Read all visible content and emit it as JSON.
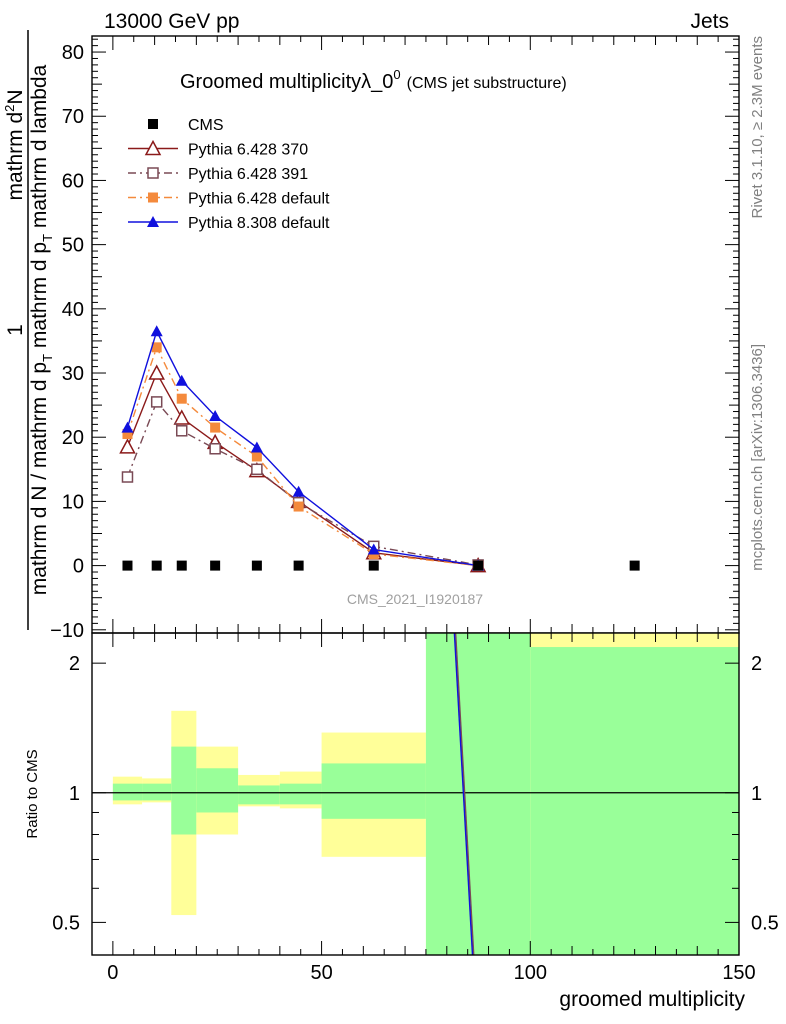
{
  "header": {
    "left": "13000 GeV pp",
    "right": "Jets"
  },
  "side_labels": {
    "rivet": "Rivet 3.1.10, ≥ 2.3M events",
    "mcplots": "mcplots.cern.ch [arXiv:1306.3436]"
  },
  "colors": {
    "cms": "#000000",
    "p370": "#8b1a1a",
    "p391": "#7a4a55",
    "p6def": "#f48a3c",
    "p8def": "#1010dd",
    "band_inner": "#99ff99",
    "band_outer": "#ffff99"
  },
  "chart_data": [
    {
      "type": "line",
      "title": "Groomed multiplicityλ_0",
      "title_sup": "0",
      "subtitle": "(CMS jet substructure)",
      "watermark": "CMS_2021_I1920187",
      "ylabel_numerator": "1",
      "ylabel_numerator2": "mathrm d",
      "ylabel_numerator_sup": "2",
      "ylabel_numerator3": "N",
      "ylabel_denominator": "mathrm d N / mathrm d p",
      "ylabel_denominator_sub": "T",
      "ylabel_denominator2": " mathrm d p",
      "ylabel_denominator2_sub": "T",
      "ylabel_denominator3": " mathrm d lambda",
      "xlabel": "groomed multiplicity",
      "xlim": [
        -5,
        150
      ],
      "ylim": [
        -10.5,
        82.5
      ],
      "yticks": [
        -10,
        0,
        10,
        20,
        30,
        40,
        50,
        60,
        70,
        80
      ],
      "series": [
        {
          "name": "CMS",
          "key": "cms",
          "marker": "square",
          "dash": "none",
          "x": [
            3.5,
            10.5,
            16.5,
            24.5,
            34.5,
            44.5,
            62.5,
            87.5,
            125
          ],
          "y": [
            0,
            0,
            0,
            0,
            0,
            0,
            0,
            0,
            0
          ]
        },
        {
          "name": "Pythia 6.428 370",
          "key": "p370",
          "marker": "triangle-open",
          "dash": "none",
          "x": [
            3.5,
            10.5,
            16.5,
            24.5,
            34.5,
            44.5,
            62.5,
            87.5
          ],
          "y": [
            18.5,
            30.0,
            23.0,
            19.2,
            14.8,
            10.0,
            2.0,
            0.0
          ]
        },
        {
          "name": "Pythia 6.428 391",
          "key": "p391",
          "marker": "square-open",
          "dash": "dashdot",
          "x": [
            3.5,
            10.5,
            16.5,
            24.5,
            34.5,
            44.5,
            62.5,
            87.5
          ],
          "y": [
            13.8,
            25.5,
            21.0,
            18.2,
            15.0,
            9.8,
            3.0,
            0.1
          ]
        },
        {
          "name": "Pythia 6.428 default",
          "key": "p6def",
          "marker": "square",
          "dash": "dashdot",
          "x": [
            3.5,
            10.5,
            16.5,
            24.5,
            34.5,
            44.5,
            62.5,
            87.5
          ],
          "y": [
            20.5,
            34.0,
            26.0,
            21.5,
            17.0,
            9.2,
            1.8,
            0.0
          ]
        },
        {
          "name": "Pythia 8.308 default",
          "key": "p8def",
          "marker": "triangle",
          "dash": "none",
          "x": [
            3.5,
            10.5,
            16.5,
            24.5,
            34.5,
            44.5,
            62.5,
            87.5
          ],
          "y": [
            21.5,
            36.5,
            28.8,
            23.3,
            18.4,
            11.5,
            2.5,
            0.0
          ]
        }
      ]
    },
    {
      "type": "area",
      "ylabel": "Ratio to CMS",
      "xlabel": "groomed multiplicity",
      "xlim": [
        -5,
        150
      ],
      "ylim": [
        0.42,
        2.35
      ],
      "yscale": "log",
      "xticks": [
        0,
        50,
        100,
        150
      ],
      "yticks": [
        0.5,
        1,
        2
      ],
      "bins": [
        {
          "x0": 0,
          "x1": 7,
          "inner_lo": 0.96,
          "inner_hi": 1.05,
          "outer_lo": 0.94,
          "outer_hi": 1.09
        },
        {
          "x0": 7,
          "x1": 14,
          "inner_lo": 0.96,
          "inner_hi": 1.05,
          "outer_lo": 0.95,
          "outer_hi": 1.08
        },
        {
          "x0": 14,
          "x1": 20,
          "inner_lo": 0.8,
          "inner_hi": 1.28,
          "outer_lo": 0.52,
          "outer_hi": 1.55
        },
        {
          "x0": 20,
          "x1": 30,
          "inner_lo": 0.9,
          "inner_hi": 1.14,
          "outer_lo": 0.8,
          "outer_hi": 1.28
        },
        {
          "x0": 30,
          "x1": 40,
          "inner_lo": 0.94,
          "inner_hi": 1.04,
          "outer_lo": 0.93,
          "outer_hi": 1.1
        },
        {
          "x0": 40,
          "x1": 50,
          "inner_lo": 0.94,
          "inner_hi": 1.05,
          "outer_lo": 0.92,
          "outer_hi": 1.12
        },
        {
          "x0": 50,
          "x1": 75,
          "inner_lo": 0.87,
          "inner_hi": 1.17,
          "outer_lo": 0.71,
          "outer_hi": 1.38
        },
        {
          "x0": 75,
          "x1": 100,
          "inner_lo": 0.3,
          "inner_hi": 3.0,
          "outer_lo": 0.3,
          "outer_hi": 3.0
        },
        {
          "x0": 100,
          "x1": 150,
          "inner_lo": 0.3,
          "inner_hi": 2.18,
          "outer_lo": 0.3,
          "outer_hi": 3.0
        }
      ],
      "ratio_lines": [
        {
          "key": "p391",
          "x": [
            81.5,
            87.3
          ],
          "y": [
            3.0,
            0.3
          ]
        },
        {
          "key": "p8def",
          "x": [
            81.2,
            87.0
          ],
          "y": [
            3.0,
            0.3
          ]
        }
      ]
    }
  ]
}
